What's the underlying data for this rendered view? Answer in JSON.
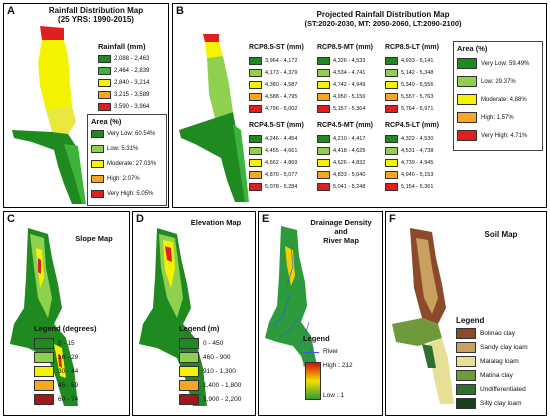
{
  "colors": {
    "dark_green": "#1f8a1f",
    "green": "#3cb43c",
    "light_green": "#8fd14f",
    "yellow": "#f3f300",
    "orange": "#f6a623",
    "red": "#e02020",
    "dark_red": "#a01818",
    "river_blue": "#3b5bd6"
  },
  "panel_a": {
    "label": "A",
    "title_line1": "Rainfall Distribution Map",
    "title_line2": "(25 YRS: 1990-2015)",
    "rain_title": "Rainfall (mm)",
    "rain_items": [
      "2,088 - 2,463",
      "2,464 - 2,839",
      "2,840 - 3,214",
      "3,215 - 3,589",
      "3,590 - 3,964"
    ],
    "area_title": "Area (%)",
    "area_items": [
      "Very Low: 60.54%",
      "Low: 5.31%",
      "Moderate: 27.03%",
      "High: 2.07%",
      "Very High: 5.05%"
    ]
  },
  "panel_b": {
    "label": "B",
    "title_line1": "Projected Rainfall Distribution Map",
    "title_line2": "(ST:2020-2030, MT: 2050-2060, LT:2090-2100)",
    "rcp85_st": {
      "title": "RCP8.5-ST (mm)",
      "items": [
        "3,964 - 4,172",
        "4,173 - 4,379",
        "4,380 - 4,587",
        "4,588 - 4,795",
        "4,796 - 5,002"
      ]
    },
    "rcp85_mt": {
      "title": "RCP8.5-MT (mm)",
      "items": [
        "4,326 - 4,533",
        "4,534 - 4,741",
        "4,742 - 4,949",
        "4,950 - 5,156",
        "5,157 - 5,364"
      ]
    },
    "rcp85_lt": {
      "title": "RCP8.5-LT (mm)",
      "items": [
        "4,933 - 5,141",
        "5,142 - 5,348",
        "5,349 - 5,556",
        "5,557 - 5,763",
        "5,764 - 5,971"
      ]
    },
    "rcp45_st": {
      "title": "RCP4.5-ST (mm)",
      "items": [
        "4,246 - 4,454",
        "4,455 - 4,661",
        "4,662 - 4,869",
        "4,870 - 5,077",
        "5,078 - 5,284"
      ]
    },
    "rcp45_mt": {
      "title": "RCP4.5-MT (mm)",
      "items": [
        "4,210 - 4,417",
        "4,418 - 4,625",
        "4,626 - 4,832",
        "4,833 - 5,040",
        "5,041 - 5,248"
      ]
    },
    "rcp45_lt": {
      "title": "RCP4.5-LT (mm)",
      "items": [
        "4,322 - 4,530",
        "4,531 - 4,738",
        "4,739 - 4,945",
        "4,946 - 5,153",
        "5,154 - 5,361"
      ]
    },
    "area_title": "Area (%)",
    "area_items": [
      "Very Low: 59.49%",
      "Low: 29.37%",
      "Moderate: 4.88%",
      "High: 1.57%",
      "Very High: 4.71%"
    ]
  },
  "panel_c": {
    "label": "C",
    "title": "Slope Map",
    "legend_title": "Legend (degrees)",
    "items": [
      "0 - 15",
      "16 - 29",
      "30 - 44",
      "45 - 59",
      "60 - 74"
    ]
  },
  "panel_d": {
    "label": "D",
    "title": "Elevation Map",
    "legend_title": "Legend (m)",
    "items": [
      "0 - 450",
      "460 - 900",
      "910 - 1,300",
      "1,400 - 1,800",
      "1,900 - 2,200"
    ]
  },
  "panel_e": {
    "label": "E",
    "title_line1": "Drainage Density",
    "title_line2": "and",
    "title_line3": "River Map",
    "legend_title": "Legend",
    "river_label": "River",
    "high_label": "High : 212",
    "low_label": "Low : 1"
  },
  "panel_f": {
    "label": "F",
    "title": "Soil Map",
    "legend_title": "Legend",
    "items": [
      {
        "label": "Bolinao clay",
        "color": "#8b4a2b"
      },
      {
        "label": "Sandy clay loam",
        "color": "#c8a060"
      },
      {
        "label": "Malalag loam",
        "color": "#e6e096"
      },
      {
        "label": "Matina clay",
        "color": "#6f9a3c"
      },
      {
        "label": "Undifferentiated",
        "color": "#2e6e2e"
      },
      {
        "label": "Silty clay loam",
        "color": "#1a3f1a"
      }
    ]
  }
}
